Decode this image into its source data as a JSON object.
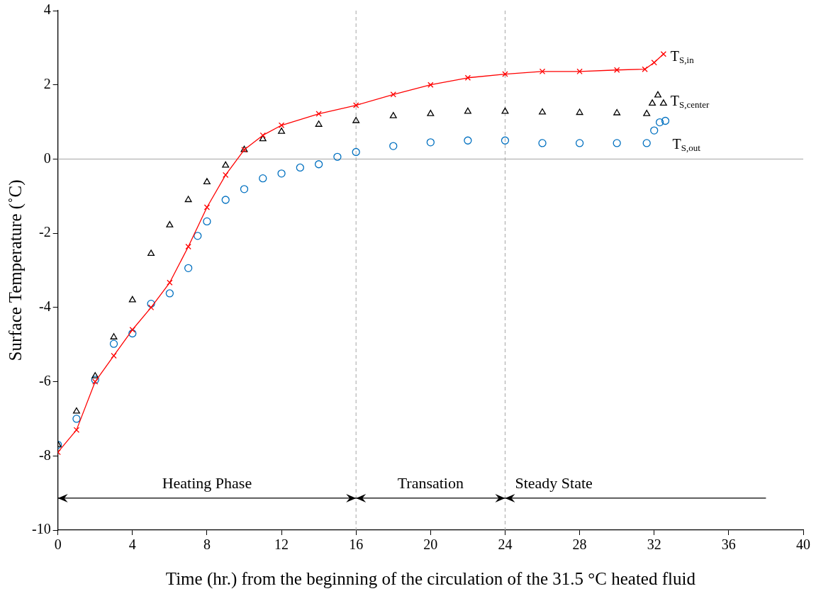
{
  "chart_data": {
    "type": "scatter",
    "xlabel": "Time (hr.) from the beginning of the circulation of the 31.5 °C heated fluid",
    "ylabel": "Surface Temperature (˚C)",
    "xlim": [
      0,
      40
    ],
    "xticks": [
      0,
      4,
      8,
      12,
      16,
      20,
      24,
      28,
      32,
      36,
      40
    ],
    "ylim": [
      -10,
      4
    ],
    "yticks": [
      -10,
      -8,
      -6,
      -4,
      -2,
      0,
      2,
      4
    ],
    "grid": false,
    "legend": false,
    "series": [
      {
        "name": "T$_{S,in}$",
        "type": "line",
        "marker": "cross",
        "color": "#ff0000",
        "x": [
          0,
          1,
          2,
          3,
          4,
          5,
          6,
          7,
          8,
          9,
          10,
          11,
          12,
          14,
          16,
          18,
          20,
          22,
          24,
          26,
          28,
          30,
          31.5,
          32,
          32.5
        ],
        "values": [
          -7.9,
          -7.3,
          -6.0,
          -5.3,
          -4.6,
          -4.0,
          -3.33,
          -2.36,
          -1.3,
          -0.43,
          0.25,
          0.64,
          0.91,
          1.22,
          1.45,
          1.74,
          2.0,
          2.19,
          2.29,
          2.36,
          2.36,
          2.4,
          2.42,
          2.6,
          2.83
        ]
      },
      {
        "name": "T$_{S,center}$",
        "type": "scatter",
        "marker": "triangle",
        "color": "#000000",
        "x": [
          0,
          1,
          2,
          3,
          4,
          5,
          6,
          7,
          8,
          9,
          10,
          11,
          12,
          14,
          16,
          18,
          20,
          22,
          24,
          26,
          28,
          30,
          31.6,
          31.9,
          32.2,
          32.5
        ],
        "values": [
          -7.7,
          -6.8,
          -5.85,
          -4.8,
          -3.8,
          -2.55,
          -1.78,
          -1.1,
          -0.62,
          -0.17,
          0.25,
          0.54,
          0.74,
          0.93,
          1.03,
          1.16,
          1.22,
          1.28,
          1.28,
          1.26,
          1.25,
          1.24,
          1.22,
          1.5,
          1.72,
          1.5
        ]
      },
      {
        "name": "T$_{S,out}$",
        "type": "scatter",
        "marker": "circle",
        "color": "#0070c0",
        "x": [
          0,
          1,
          2,
          3,
          4,
          5,
          6,
          7,
          7.5,
          8,
          9,
          10,
          11,
          12,
          13,
          14,
          15,
          16,
          18,
          20,
          22,
          24,
          26,
          28,
          30,
          31.6,
          32,
          32.3,
          32.6
        ],
        "values": [
          -7.7,
          -7.0,
          -5.95,
          -4.98,
          -4.7,
          -3.9,
          -3.62,
          -2.94,
          -2.07,
          -1.68,
          -1.1,
          -0.81,
          -0.52,
          -0.39,
          -0.23,
          -0.14,
          0.06,
          0.19,
          0.35,
          0.45,
          0.5,
          0.5,
          0.43,
          0.43,
          0.43,
          0.43,
          0.77,
          0.99,
          1.03
        ]
      }
    ],
    "ref_lines": [
      {
        "axis": "y",
        "value": 0,
        "color": "#a6a6a6",
        "line_style": "solid"
      },
      {
        "axis": "x",
        "value": 16,
        "color": "#a6a6a6",
        "line_style": "dashed"
      },
      {
        "axis": "x",
        "value": 24,
        "color": "#a6a6a6",
        "line_style": "dashed"
      }
    ],
    "annotations": [
      "Heating Phase",
      "Transation",
      "Steady State"
    ]
  }
}
